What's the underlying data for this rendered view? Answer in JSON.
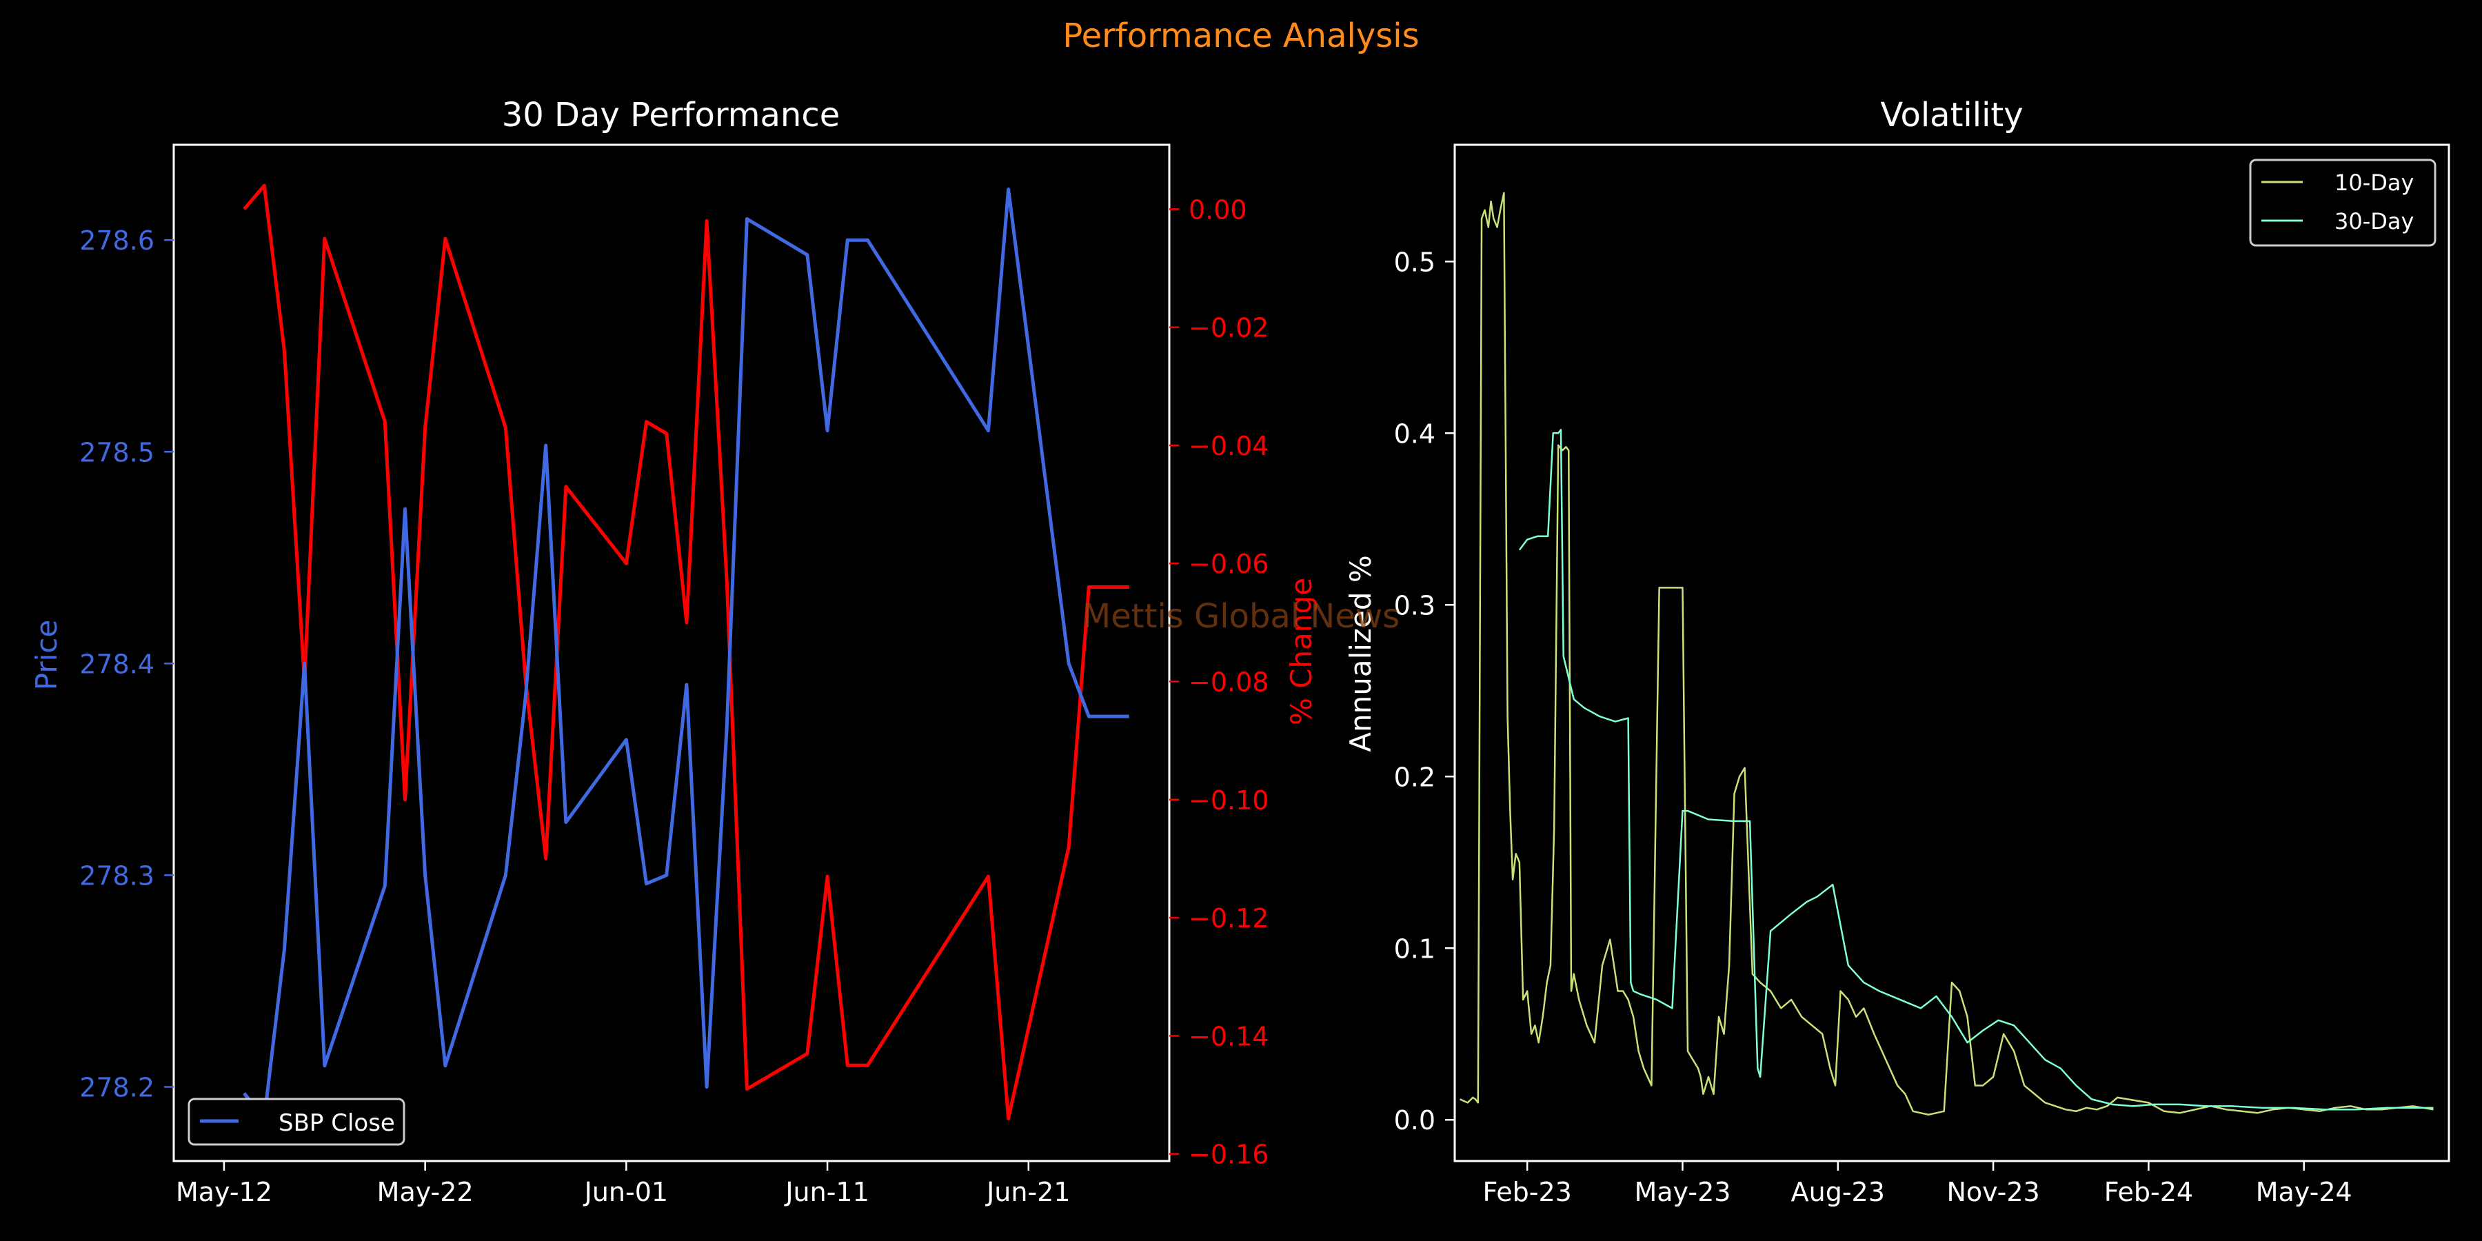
{
  "figure": {
    "title": "Performance Analysis",
    "watermark": "Mettis Global News",
    "title_color": "#ff8c1a",
    "background": "#000000"
  },
  "chart_data": [
    {
      "type": "line",
      "title": "30 Day Performance",
      "xlabel": "",
      "ylabel": "Price",
      "y2label": "% Change",
      "x_tick_labels": [
        "May-12",
        "May-22",
        "Jun-01",
        "Jun-11",
        "Jun-21"
      ],
      "x_tick_days": [
        0,
        10,
        20,
        30,
        40
      ],
      "xlim_days": [
        -2.5,
        47
      ],
      "ylim": [
        278.165,
        278.645
      ],
      "y_ticks": [
        278.2,
        278.3,
        278.4,
        278.5,
        278.6
      ],
      "y_tick_labels": [
        "278.2",
        "278.3",
        "278.4",
        "278.5",
        "278.6"
      ],
      "y2lim": [
        -0.1612,
        0.0109
      ],
      "y2_ticks": [
        0.0,
        -0.02,
        -0.04,
        -0.06,
        -0.08,
        -0.1,
        -0.12,
        -0.14,
        -0.16
      ],
      "y2_tick_labels": [
        "0.00",
        "−0.02",
        "−0.04",
        "−0.06",
        "−0.08",
        "−0.10",
        "−0.12",
        "−0.14",
        "−0.16"
      ],
      "price_color": "#4169e1",
      "change_color": "#ff0000",
      "legend": {
        "position": "lower left",
        "entries": [
          "SBP Close"
        ]
      },
      "series": [
        {
          "name": "SBP Close",
          "axis": "left",
          "x_days": [
            1,
            2,
            3,
            4,
            5,
            8,
            9,
            10,
            11,
            14,
            15,
            16,
            17,
            20,
            21,
            22,
            23,
            24,
            25,
            26,
            29,
            30,
            31,
            32,
            38,
            39,
            42,
            43,
            45
          ],
          "values": [
            278.197,
            278.185,
            278.265,
            278.4,
            278.21,
            278.295,
            278.473,
            278.3,
            278.21,
            278.3,
            278.385,
            278.503,
            278.325,
            278.364,
            278.296,
            278.3,
            278.39,
            278.2,
            278.37,
            278.61,
            278.593,
            278.51,
            278.6,
            278.6,
            278.51,
            278.624,
            278.4,
            278.375,
            278.375
          ]
        },
        {
          "name": "% Change",
          "axis": "right",
          "x_days": [
            1,
            2,
            3,
            4,
            5,
            8,
            9,
            10,
            11,
            14,
            15,
            16,
            17,
            20,
            21,
            22,
            23,
            24,
            25,
            26,
            29,
            30,
            31,
            32,
            38,
            39,
            42,
            43,
            45
          ],
          "values": [
            0.0,
            0.004,
            -0.024,
            -0.08,
            -0.005,
            -0.036,
            -0.1,
            -0.037,
            -0.005,
            -0.037,
            -0.08,
            -0.11,
            -0.047,
            -0.06,
            -0.036,
            -0.038,
            -0.07,
            -0.002,
            -0.063,
            -0.149,
            -0.143,
            -0.113,
            -0.145,
            -0.145,
            -0.113,
            -0.154,
            -0.108,
            -0.064,
            -0.064
          ]
        }
      ]
    },
    {
      "type": "line",
      "title": "Volatility",
      "xlabel": "",
      "ylabel": "Annualized %",
      "x_tick_labels": [
        "Feb-23",
        "May-23",
        "Aug-23",
        "Nov-23",
        "Feb-24",
        "May-24"
      ],
      "x_tick_months": [
        0,
        3,
        6,
        9,
        12,
        15
      ],
      "xlim_months": [
        -1.4,
        17.8
      ],
      "ylim": [
        -0.024,
        0.568
      ],
      "y_ticks": [
        0.0,
        0.1,
        0.2,
        0.3,
        0.4,
        0.5
      ],
      "y_tick_labels": [
        "0.0",
        "0.1",
        "0.2",
        "0.3",
        "0.4",
        "0.5"
      ],
      "legend": {
        "position": "upper right",
        "entries": [
          "10-Day",
          "30-Day"
        ]
      },
      "series": [
        {
          "name": "10-Day",
          "color": "#c7e378",
          "x_months": [
            -1.3,
            -1.15,
            -1.05,
            -1.0,
            -0.95,
            -0.88,
            -0.82,
            -0.75,
            -0.7,
            -0.65,
            -0.58,
            -0.52,
            -0.45,
            -0.38,
            -0.33,
            -0.28,
            -0.22,
            -0.15,
            -0.08,
            0.0,
            0.08,
            0.15,
            0.22,
            0.3,
            0.38,
            0.45,
            0.52,
            0.6,
            0.68,
            0.75,
            0.8,
            0.85,
            0.9,
            1.0,
            1.15,
            1.3,
            1.45,
            1.6,
            1.75,
            1.85,
            1.95,
            2.05,
            2.15,
            2.25,
            2.4,
            2.55,
            2.7,
            2.8,
            2.9,
            3.0,
            3.1,
            3.2,
            3.3,
            3.35,
            3.4,
            3.45,
            3.5,
            3.55,
            3.6,
            3.7,
            3.8,
            3.9,
            4.0,
            4.1,
            4.2,
            4.35,
            4.5,
            4.7,
            4.9,
            5.1,
            5.3,
            5.5,
            5.7,
            5.85,
            5.95,
            6.05,
            6.2,
            6.35,
            6.5,
            6.7,
            6.85,
            7.0,
            7.15,
            7.3,
            7.45,
            7.6,
            7.75,
            7.9,
            8.05,
            8.2,
            8.35,
            8.5,
            8.65,
            8.8,
            9.0,
            9.2,
            9.4,
            9.6,
            9.8,
            10.0,
            10.2,
            10.4,
            10.6,
            10.8,
            11.0,
            11.2,
            11.4,
            11.6,
            11.8,
            12.0,
            12.3,
            12.6,
            12.9,
            13.2,
            13.5,
            13.8,
            14.1,
            14.4,
            14.7,
            15.0,
            15.3,
            15.6,
            15.9,
            16.2,
            16.5,
            16.8,
            17.1,
            17.3,
            17.5
          ],
          "values": [
            0.012,
            0.01,
            0.013,
            0.012,
            0.01,
            0.525,
            0.53,
            0.52,
            0.535,
            0.525,
            0.52,
            0.53,
            0.54,
            0.235,
            0.18,
            0.14,
            0.155,
            0.15,
            0.07,
            0.075,
            0.05,
            0.055,
            0.045,
            0.06,
            0.08,
            0.09,
            0.17,
            0.393,
            0.39,
            0.392,
            0.39,
            0.075,
            0.085,
            0.07,
            0.055,
            0.045,
            0.09,
            0.105,
            0.075,
            0.075,
            0.07,
            0.06,
            0.04,
            0.03,
            0.02,
            0.31,
            0.31,
            0.31,
            0.31,
            0.31,
            0.04,
            0.035,
            0.03,
            0.025,
            0.015,
            0.02,
            0.025,
            0.02,
            0.015,
            0.06,
            0.05,
            0.09,
            0.19,
            0.2,
            0.205,
            0.085,
            0.08,
            0.075,
            0.065,
            0.07,
            0.06,
            0.055,
            0.05,
            0.03,
            0.02,
            0.075,
            0.07,
            0.06,
            0.065,
            0.05,
            0.04,
            0.03,
            0.02,
            0.015,
            0.005,
            0.004,
            0.003,
            0.004,
            0.005,
            0.08,
            0.075,
            0.06,
            0.02,
            0.02,
            0.025,
            0.05,
            0.04,
            0.02,
            0.015,
            0.01,
            0.008,
            0.006,
            0.005,
            0.007,
            0.006,
            0.008,
            0.013,
            0.012,
            0.011,
            0.01,
            0.005,
            0.004,
            0.006,
            0.008,
            0.006,
            0.005,
            0.004,
            0.006,
            0.007,
            0.006,
            0.005,
            0.007,
            0.008,
            0.006,
            0.006,
            0.007,
            0.008,
            0.007,
            0.006
          ]
        },
        {
          "name": "30-Day",
          "color": "#7fffd4",
          "x_months": [
            -0.15,
            0.0,
            0.2,
            0.4,
            0.5,
            0.6,
            0.65,
            0.7,
            0.9,
            1.1,
            1.4,
            1.7,
            1.95,
            2.0,
            2.05,
            2.2,
            2.5,
            2.8,
            3.0,
            3.1,
            3.5,
            4.0,
            4.3,
            4.45,
            4.5,
            4.7,
            4.9,
            5.1,
            5.4,
            5.6,
            5.9,
            6.2,
            6.5,
            6.8,
            7.2,
            7.6,
            7.9,
            8.2,
            8.5,
            8.8,
            9.1,
            9.4,
            9.7,
            10.0,
            10.3,
            10.6,
            10.9,
            11.3,
            11.7,
            12.1,
            12.6,
            13.1,
            13.6,
            14.2,
            14.8,
            15.4,
            16.0,
            16.6,
            17.2,
            17.5
          ],
          "values": [
            0.332,
            0.338,
            0.34,
            0.34,
            0.4,
            0.4,
            0.402,
            0.27,
            0.245,
            0.24,
            0.235,
            0.232,
            0.234,
            0.08,
            0.075,
            0.073,
            0.07,
            0.065,
            0.18,
            0.18,
            0.175,
            0.174,
            0.174,
            0.03,
            0.025,
            0.11,
            0.115,
            0.12,
            0.127,
            0.13,
            0.137,
            0.09,
            0.08,
            0.075,
            0.07,
            0.065,
            0.072,
            0.06,
            0.045,
            0.052,
            0.058,
            0.055,
            0.045,
            0.035,
            0.03,
            0.02,
            0.012,
            0.009,
            0.008,
            0.009,
            0.009,
            0.008,
            0.008,
            0.007,
            0.007,
            0.006,
            0.006,
            0.007,
            0.007,
            0.007
          ]
        }
      ]
    }
  ]
}
